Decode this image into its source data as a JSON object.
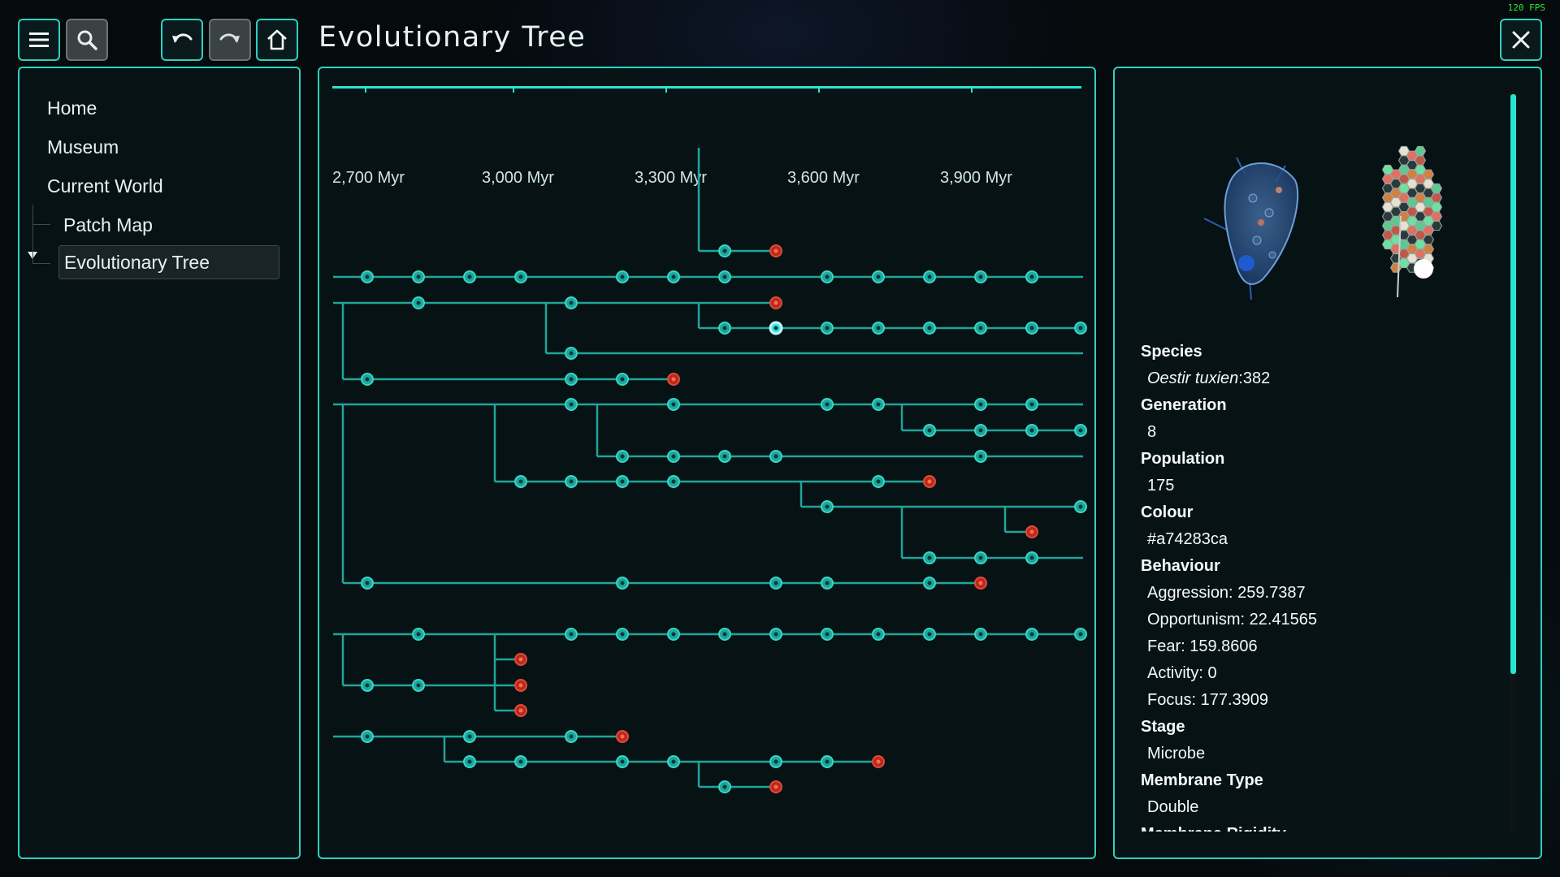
{
  "fps": "120 FPS",
  "title": "Evolutionary Tree",
  "toolbar": {
    "menu_icon": "hamburger-icon",
    "search_icon": "magnifier-icon",
    "undo_icon": "undo-icon",
    "redo_icon": "redo-icon",
    "home_icon": "home-icon",
    "close_icon": "close-icon"
  },
  "nav": {
    "home": "Home",
    "museum": "Museum",
    "current_world": "Current World",
    "patch_map": "Patch Map",
    "evolutionary_tree": "Evolutionary Tree"
  },
  "timeline": {
    "ticks": [
      "2,700 Myr",
      "3,000 Myr",
      "3,300 Myr",
      "3,600 Myr",
      "3,900 Myr"
    ]
  },
  "colors": {
    "accent": "#2fd0c0",
    "node": "#1fa59a",
    "node_selected": "#3fe6e0",
    "node_extinct": "#b82a1c"
  },
  "details": {
    "species_label": "Species",
    "species_name": "Oestir tuxien",
    "species_suffix": ":382",
    "generation_label": "Generation",
    "generation": "8",
    "population_label": "Population",
    "population": "175",
    "colour_label": "Colour",
    "colour": "#a74283ca",
    "behaviour_label": "Behaviour",
    "aggression": "Aggression: 259.7387",
    "opportunism": "Opportunism: 22.41565",
    "fear": "Fear: 159.8606",
    "activity": "Activity: 0",
    "focus": "Focus: 177.3909",
    "stage_label": "Stage",
    "stage": "Microbe",
    "membrane_type_label": "Membrane Type",
    "membrane_type": "Double",
    "membrane_rigidity_label": "Membrane Rigidity"
  }
}
